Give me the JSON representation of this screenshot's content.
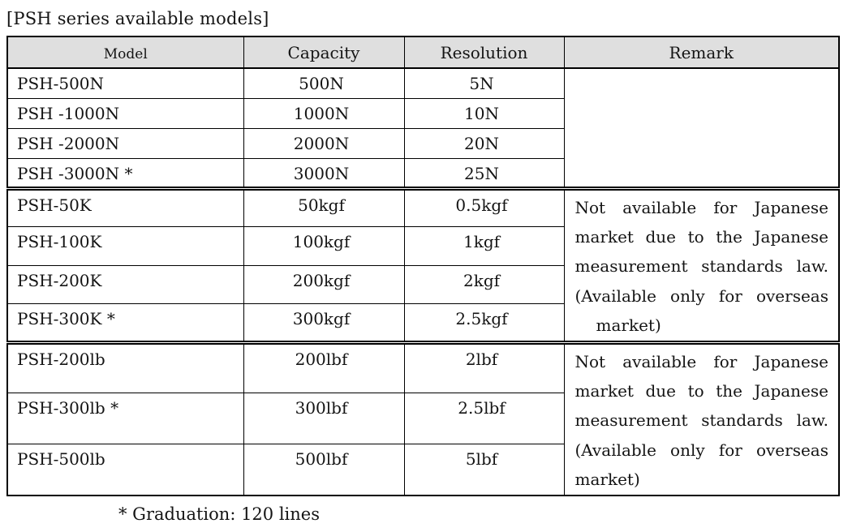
{
  "title": "[PSH series available models]",
  "table": {
    "headers": [
      "Model",
      "Capacity",
      "Resolution",
      "Remark"
    ],
    "groups": [
      {
        "rows": [
          {
            "model": "PSH-500N",
            "capacity": "500N",
            "resolution": "5N"
          },
          {
            "model": "PSH -1000N",
            "capacity": "1000N",
            "resolution": "10N"
          },
          {
            "model": "PSH -2000N",
            "capacity": "2000N",
            "resolution": "20N"
          },
          {
            "model": "PSH -3000N *",
            "capacity": "3000N",
            "resolution": "25N"
          }
        ],
        "remark_lines": []
      },
      {
        "rows": [
          {
            "model": "PSH-50K",
            "capacity": "50kgf",
            "resolution": "0.5kgf"
          },
          {
            "model": "PSH-100K",
            "capacity": "100kgf",
            "resolution": "1kgf"
          },
          {
            "model": "PSH-200K",
            "capacity": "200kgf",
            "resolution": "2kgf"
          },
          {
            "model": "PSH-300K *",
            "capacity": "300kgf",
            "resolution": "2.5kgf"
          }
        ],
        "remark_lines": [
          "Not available for Japanese",
          "market due to the Japanese",
          "measurement standards law.",
          "(Available only for overseas",
          "market)"
        ],
        "remark_last_indent": true
      },
      {
        "rows": [
          {
            "model": "PSH-200lb",
            "capacity": "200lbf",
            "resolution": "2lbf"
          },
          {
            "model": "PSH-300lb *",
            "capacity": "300lbf",
            "resolution": "2.5lbf"
          },
          {
            "model": "PSH-500lb",
            "capacity": "500lbf",
            "resolution": "5lbf"
          }
        ],
        "remark_lines": [
          "Not available for Japanese",
          "market due to the Japanese",
          "measurement standards law.",
          "(Available only for overseas",
          "market)"
        ],
        "remark_last_indent": false
      }
    ]
  },
  "footnote": "* Graduation: 120 lines",
  "colors": {
    "header_bg": "#dfdfdf",
    "border": "#000000",
    "text": "#141414",
    "page_bg": "#ffffff"
  }
}
